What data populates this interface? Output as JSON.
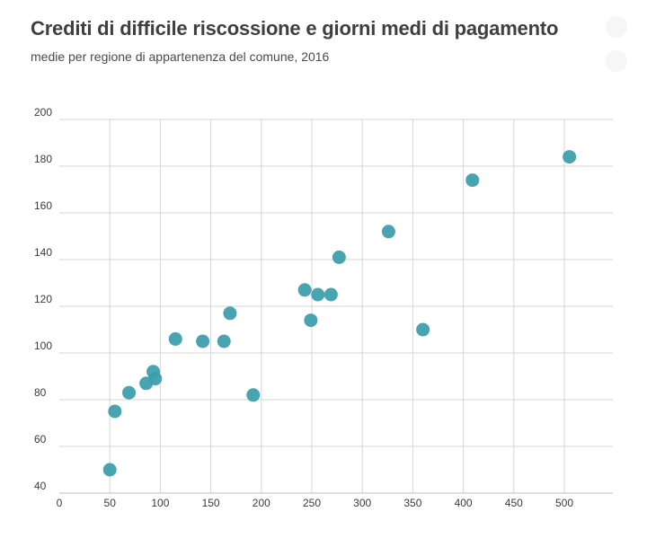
{
  "title": "Crediti di difficile riscossione e giorni medi di pagamento",
  "subtitle": "medie per regione di appartenenza del comune, 2016",
  "colors": {
    "point": "#3d9fac",
    "grid": "#d6d6d6",
    "axis": "#bdbdbd"
  },
  "chart_data": {
    "type": "scatter",
    "title": "Crediti di difficile riscossione e giorni medi di pagamento",
    "subtitle": "medie per regione di appartenenza del comune, 2016",
    "xlabel": "",
    "ylabel": "",
    "xlim": [
      0,
      550
    ],
    "ylim": [
      40,
      200
    ],
    "x_ticks": [
      0,
      50,
      100,
      150,
      200,
      250,
      300,
      350,
      400,
      450,
      500
    ],
    "y_ticks": [
      40,
      60,
      80,
      100,
      120,
      140,
      160,
      180,
      200
    ],
    "grid": true,
    "legend": "none",
    "points": [
      {
        "x": 50,
        "y": 50
      },
      {
        "x": 55,
        "y": 75
      },
      {
        "x": 69,
        "y": 83
      },
      {
        "x": 86,
        "y": 87
      },
      {
        "x": 93,
        "y": 92
      },
      {
        "x": 95,
        "y": 89
      },
      {
        "x": 115,
        "y": 106
      },
      {
        "x": 142,
        "y": 105
      },
      {
        "x": 163,
        "y": 105
      },
      {
        "x": 169,
        "y": 117
      },
      {
        "x": 192,
        "y": 82
      },
      {
        "x": 243,
        "y": 127
      },
      {
        "x": 249,
        "y": 114
      },
      {
        "x": 256,
        "y": 125
      },
      {
        "x": 269,
        "y": 125
      },
      {
        "x": 277,
        "y": 141
      },
      {
        "x": 326,
        "y": 152
      },
      {
        "x": 360,
        "y": 110
      },
      {
        "x": 409,
        "y": 174
      },
      {
        "x": 505,
        "y": 184
      }
    ]
  }
}
